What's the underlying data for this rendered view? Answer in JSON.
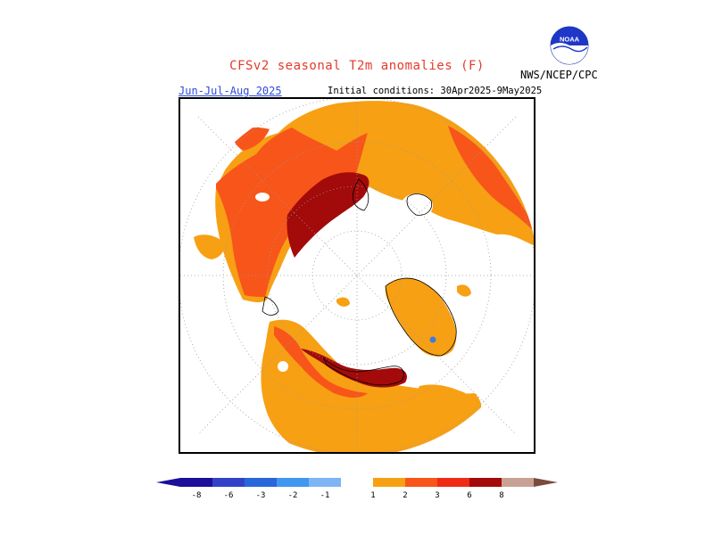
{
  "header": {
    "title": "CFSv2 seasonal T2m anomalies (F)",
    "season": "Jun-Jul-Aug 2025",
    "initial_conditions": "Initial conditions: 30Apr2025-9May2025",
    "agency": "NWS/NCEP/CPC"
  },
  "logo": {
    "text": "NOAA"
  },
  "legend": {
    "labels": [
      "-8",
      "-6",
      "-3",
      "-2",
      "-1",
      "1",
      "2",
      "3",
      "6",
      "8"
    ],
    "colors": [
      "#1c0f99",
      "#3341c8",
      "#2966d9",
      "#4196ef",
      "#7db5f5",
      "#ffffff",
      "#f7a014",
      "#f8551a",
      "#ef2b16",
      "#a30a0a",
      "#c9a194",
      "#7a4a3e"
    ]
  },
  "map": {
    "projection": "north-polar-stereographic",
    "colors": {
      "anom_1_2": "#f7a014",
      "anom_2_3": "#f8551a",
      "anom_3_6": "#ef2b16",
      "anom_6_8": "#a30a0a",
      "anom_neg": "#3e7be0",
      "coast": "#000000",
      "grid": "#9a9a9a"
    }
  }
}
